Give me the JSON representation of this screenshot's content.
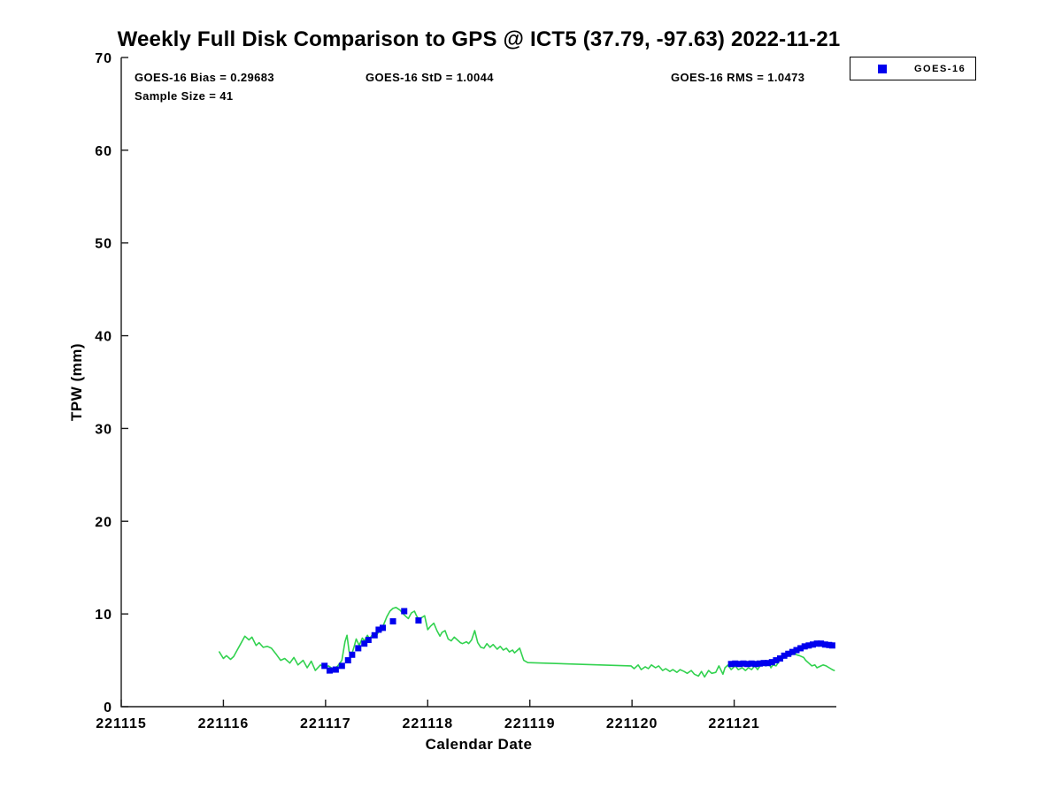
{
  "figure": {
    "title": "Weekly Full Disk Comparison to GPS @ ICT5 (37.79, -97.63) 2022-11-21",
    "stats": {
      "bias": "GOES-16 Bias = 0.29683",
      "std": "GOES-16 StD = 1.0044",
      "rms": "GOES-16 RMS = 1.0473",
      "sample_size": "Sample Size = 41"
    },
    "legend": {
      "position": "top-right-outside-plot",
      "entries": [
        {
          "label": "GOES-16",
          "marker": "filled-square",
          "color": "#0000ee"
        }
      ]
    }
  },
  "chart_data": {
    "type": "line",
    "title": "Weekly Full Disk Comparison to GPS @ ICT5 (37.79, -97.63) 2022-11-21",
    "xlabel": "Calendar Date",
    "ylabel": "TPW (mm)",
    "xlim": [
      221115,
      221122
    ],
    "ylim": [
      0,
      70
    ],
    "x_ticks": [
      221115,
      221116,
      221117,
      221118,
      221119,
      221120,
      221121
    ],
    "y_ticks": [
      0,
      10,
      20,
      30,
      40,
      50,
      60,
      70
    ],
    "grid": false,
    "box": "left-bottom-only",
    "colors": {
      "gps_line": "#32d24f",
      "goes16_marker": "#0000ee",
      "axis": "#1a1a1a",
      "text": "#000000",
      "background": "#ffffff"
    },
    "stats": {
      "bias": 0.29683,
      "std": 1.0044,
      "rms": 1.0473,
      "sample_size": 41
    },
    "series": [
      {
        "name": "GPS",
        "type": "line",
        "color": "#32d24f",
        "x": [
          221115.96,
          221116.0,
          221116.03,
          221116.07,
          221116.1,
          221116.13,
          221116.17,
          221116.21,
          221116.25,
          221116.28,
          221116.32,
          221116.35,
          221116.39,
          221116.43,
          221116.47,
          221116.52,
          221116.56,
          221116.6,
          221116.65,
          221116.69,
          221116.73,
          221116.78,
          221116.82,
          221116.86,
          221116.9,
          221116.95,
          221116.99,
          221117.03,
          221117.08,
          221117.12,
          221117.16,
          221117.19,
          221117.21,
          221117.23,
          221117.25,
          221117.28,
          221117.3,
          221117.33,
          221117.36,
          221117.38,
          221117.41,
          221117.43,
          221117.46,
          221117.49,
          221117.52,
          221117.55,
          221117.57,
          221117.6,
          221117.63,
          221117.66,
          221117.69,
          221117.73,
          221117.76,
          221117.79,
          221117.81,
          221117.84,
          221117.87,
          221117.89,
          221117.92,
          221117.94,
          221117.97,
          221118.0,
          221118.03,
          221118.06,
          221118.09,
          221118.12,
          221118.14,
          221118.17,
          221118.2,
          221118.23,
          221118.26,
          221118.29,
          221118.32,
          221118.34,
          221118.38,
          221118.4,
          221118.43,
          221118.46,
          221118.49,
          221118.52,
          221118.55,
          221118.58,
          221118.61,
          221118.64,
          221118.68,
          221118.71,
          221118.74,
          221118.77,
          221118.8,
          221118.83,
          221118.85,
          221118.88,
          221118.9,
          221118.94,
          221118.98,
          221119.99,
          221120.02,
          221120.06,
          221120.09,
          221120.13,
          221120.16,
          221120.19,
          221120.23,
          221120.26,
          221120.3,
          221120.33,
          221120.37,
          221120.4,
          221120.44,
          221120.47,
          221120.51,
          221120.54,
          221120.58,
          221120.61,
          221120.65,
          221120.68,
          221120.71,
          221120.75,
          221120.78,
          221120.82,
          221120.85,
          221120.89,
          221120.91,
          221120.94,
          221120.97,
          221121.01,
          221121.04,
          221121.08,
          221121.11,
          221121.14,
          221121.17,
          221121.2,
          221121.23,
          221121.26,
          221121.29,
          221121.31,
          221121.34,
          221121.36,
          221121.38,
          221121.41,
          221121.44,
          221121.47,
          221121.5,
          221121.53,
          221121.56,
          221121.59,
          221121.61,
          221121.64,
          221121.68,
          221121.7,
          221121.73,
          221121.76,
          221121.79,
          221121.81,
          221121.85,
          221121.87,
          221121.9,
          221121.93,
          221121.96,
          221121.98
        ],
        "y": [
          5.9,
          5.2,
          5.5,
          5.1,
          5.4,
          6.0,
          6.8,
          7.6,
          7.2,
          7.5,
          6.6,
          6.9,
          6.4,
          6.5,
          6.3,
          5.6,
          5.0,
          5.2,
          4.7,
          5.3,
          4.5,
          5.0,
          4.2,
          4.9,
          3.9,
          4.5,
          4.2,
          4.4,
          4.0,
          4.4,
          5.0,
          7.0,
          7.7,
          6.0,
          5.4,
          6.5,
          7.3,
          6.6,
          7.4,
          7.1,
          7.7,
          7.3,
          7.8,
          7.5,
          8.1,
          8.2,
          8.9,
          9.7,
          10.3,
          10.6,
          10.7,
          10.4,
          10.0,
          9.7,
          9.5,
          10.1,
          10.3,
          9.8,
          9.3,
          9.6,
          9.8,
          8.3,
          8.7,
          9.0,
          8.2,
          7.6,
          8.0,
          8.2,
          7.3,
          7.1,
          7.5,
          7.2,
          6.9,
          6.8,
          7.0,
          6.8,
          7.2,
          8.2,
          6.9,
          6.4,
          6.3,
          6.8,
          6.4,
          6.7,
          6.2,
          6.5,
          6.1,
          6.3,
          5.9,
          6.1,
          5.8,
          6.1,
          6.3,
          5.0,
          4.75,
          4.4,
          4.1,
          4.5,
          4.0,
          4.3,
          4.1,
          4.5,
          4.2,
          4.4,
          3.9,
          4.1,
          3.8,
          4.0,
          3.7,
          4.0,
          3.8,
          3.6,
          3.9,
          3.5,
          3.3,
          3.8,
          3.2,
          3.9,
          3.6,
          3.7,
          4.4,
          3.5,
          4.2,
          4.5,
          4.0,
          4.4,
          4.0,
          4.2,
          3.9,
          4.2,
          4.0,
          4.4,
          4.0,
          4.5,
          4.9,
          4.4,
          4.7,
          4.2,
          4.5,
          4.4,
          4.9,
          5.2,
          5.3,
          5.5,
          5.6,
          5.8,
          5.6,
          5.5,
          5.3,
          5.0,
          4.7,
          4.4,
          4.5,
          4.2,
          4.4,
          4.5,
          4.4,
          4.2,
          4.0,
          3.9
        ]
      },
      {
        "name": "GOES-16",
        "type": "scatter",
        "marker": "square",
        "color": "#0000ee",
        "x": [
          221116.99,
          221117.04,
          221117.1,
          221117.16,
          221117.22,
          221117.26,
          221117.32,
          221117.38,
          221117.42,
          221117.48,
          221117.52,
          221117.56,
          221117.66,
          221117.77,
          221117.91,
          221120.97,
          221121.01,
          221121.05,
          221121.09,
          221121.13,
          221121.17,
          221121.21,
          221121.25,
          221121.29,
          221121.33,
          221121.37,
          221121.41,
          221121.45,
          221121.49,
          221121.53,
          221121.57,
          221121.61,
          221121.65,
          221121.69,
          221121.73,
          221121.77,
          221121.81,
          221121.85,
          221121.89,
          221121.93,
          221121.96
        ],
        "y": [
          4.4,
          3.9,
          4.0,
          4.4,
          5.0,
          5.6,
          6.3,
          6.8,
          7.2,
          7.7,
          8.3,
          8.5,
          9.2,
          10.3,
          9.3,
          4.6,
          4.65,
          4.6,
          4.65,
          4.6,
          4.65,
          4.6,
          4.65,
          4.7,
          4.7,
          4.8,
          5.0,
          5.2,
          5.5,
          5.7,
          5.9,
          6.1,
          6.3,
          6.5,
          6.6,
          6.7,
          6.8,
          6.8,
          6.7,
          6.65,
          6.6
        ]
      }
    ]
  }
}
